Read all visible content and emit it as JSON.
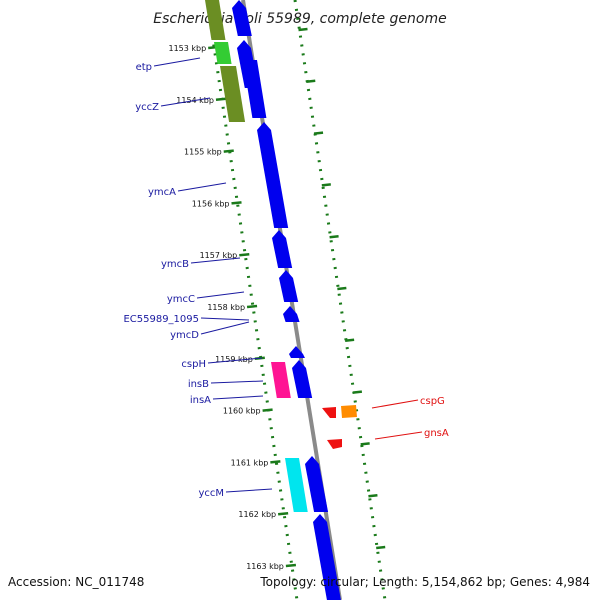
{
  "title": "Escherichia coli 55989, complete genome",
  "footer": {
    "accession": "Accession: NC_011748",
    "summary": "Topology: circular; Length: 5,154,862 bp; Genes: 4,984"
  },
  "colors": {
    "backbone": "#8a8a8a",
    "tick": "#1a7a1a",
    "forward_label": "#1a1aa0",
    "reverse_label": "#e01010",
    "blue_gene": "#0000ee",
    "olive_gene": "#6b8e23",
    "green_gene": "#33cc33",
    "magenta_gene": "#ff1493",
    "cyan_gene": "#00e5ee",
    "red_gene": "#ee1111",
    "orange_gene": "#ff8c00"
  },
  "ticks": [
    {
      "label": "1153 kbp"
    },
    {
      "label": "1154 kbp"
    },
    {
      "label": "1155 kbp"
    },
    {
      "label": "1156 kbp"
    },
    {
      "label": "1157 kbp"
    },
    {
      "label": "1158 kbp"
    },
    {
      "label": "1159 kbp"
    },
    {
      "label": "1160 kbp"
    },
    {
      "label": "1161 kbp"
    },
    {
      "label": "1162 kbp"
    },
    {
      "label": "1163 kbp"
    }
  ],
  "forward_genes": [
    {
      "name": "etp"
    },
    {
      "name": "yccZ"
    },
    {
      "name": "ymcA"
    },
    {
      "name": "ymcB"
    },
    {
      "name": "ymcC"
    },
    {
      "name": "EC55989_1095"
    },
    {
      "name": "ymcD"
    },
    {
      "name": "cspH"
    },
    {
      "name": "insB"
    },
    {
      "name": "insA"
    },
    {
      "name": "yccM"
    }
  ],
  "reverse_genes": [
    {
      "name": "cspG"
    },
    {
      "name": "gnsA"
    }
  ]
}
